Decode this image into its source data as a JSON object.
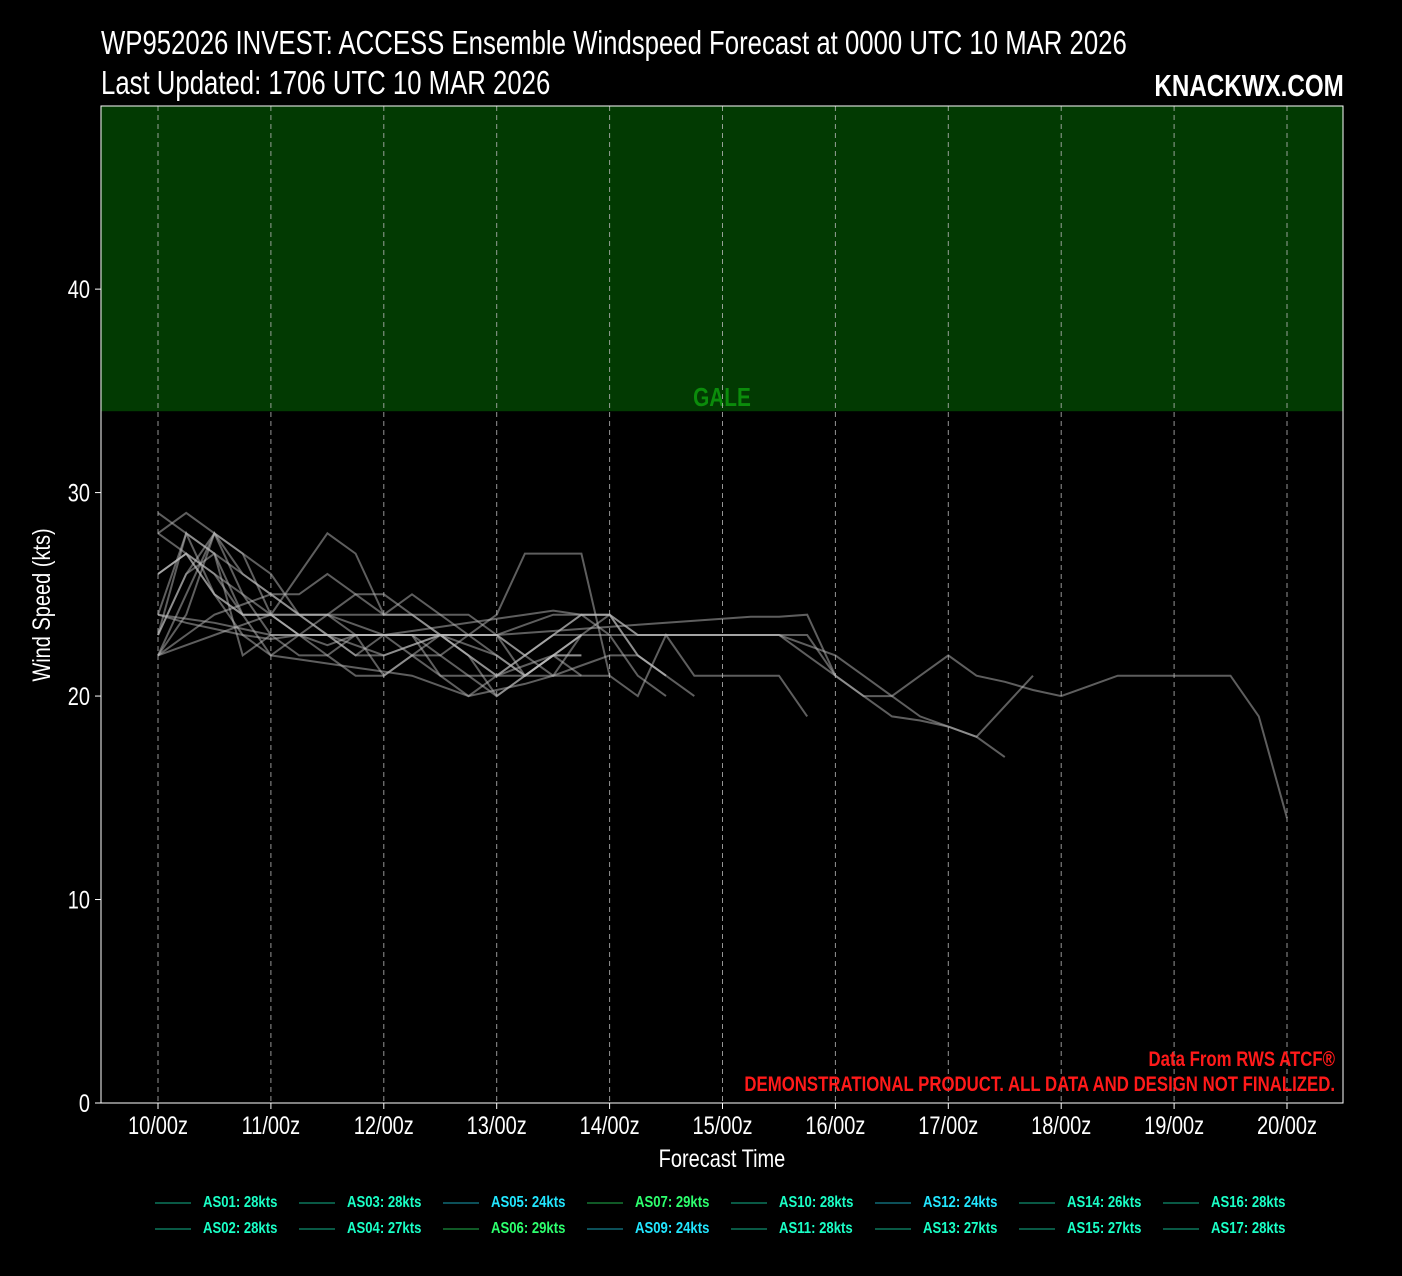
{
  "title": "WP952026 INVEST: ACCESS Ensemble Windspeed Forecast at 0000 UTC 10 MAR 2026",
  "subtitle": "Last Updated: 1706 UTC 10 MAR 2026",
  "brand": "KNACKWX.COM",
  "credit": "Data From RWS ATCF®",
  "disclaimer": "DEMONSTRATIONAL PRODUCT. ALL DATA AND DESIGN NOT FINALIZED.",
  "colors": {
    "background": "#000000",
    "gale_band": "#023a02",
    "gale_text": "#0b8c0b",
    "member_line": "#bbbbbb",
    "disclaimer": "#ff1a1a"
  },
  "chart_data": {
    "type": "line",
    "xlabel": "Forecast Time",
    "ylabel": "Wind Speed (kts)",
    "ylim": [
      0,
      49
    ],
    "yticks": [
      0,
      10,
      20,
      30,
      40
    ],
    "xticks": [
      "10/00z",
      "11/00z",
      "12/00z",
      "13/00z",
      "14/00z",
      "15/00z",
      "16/00z",
      "17/00z",
      "18/00z",
      "19/00z",
      "20/00z"
    ],
    "grid": "vertical dashed at day ticks",
    "legend_placement": "bottom",
    "threshold_bands": [
      {
        "label": "GALE",
        "from": 34,
        "to": 49
      }
    ],
    "times": [
      "10/00z",
      "10/06z",
      "10/12z",
      "10/18z",
      "11/00z",
      "11/06z",
      "11/12z",
      "11/18z",
      "12/00z",
      "12/06z",
      "12/12z",
      "12/18z",
      "13/00z",
      "13/06z",
      "13/12z",
      "13/18z",
      "14/00z",
      "14/06z",
      "14/12z",
      "14/18z",
      "15/00z",
      "15/06z",
      "15/12z",
      "15/18z",
      "16/00z",
      "16/06z",
      "16/12z",
      "16/18z",
      "17/00z",
      "17/06z",
      "17/12z",
      "17/18z",
      "18/00z",
      "18/06z",
      "18/12z",
      "18/18z",
      "19/00z",
      "19/06z",
      "19/12z",
      "19/18z",
      "20/00z"
    ],
    "series": [
      {
        "name": "AS01: 28kts",
        "color": "#1affc6",
        "values": [
          24,
          23.8,
          23.6,
          23.3,
          23,
          23,
          23,
          23,
          23,
          23,
          23,
          23,
          23,
          23.1,
          23.2,
          23.3,
          23.4,
          23.5,
          23.6,
          23.7,
          23.8,
          23.9,
          23.9,
          24,
          21,
          20,
          20,
          21,
          22,
          21,
          20.7,
          20.3,
          20,
          20.5,
          21,
          21,
          21,
          21,
          21,
          19,
          14
        ]
      },
      {
        "name": "AS02: 28kts",
        "color": "#1affc6",
        "values": [
          22,
          22.5,
          23,
          23.5,
          24,
          24,
          23,
          23,
          23,
          23.2,
          23.4,
          23.6,
          23.8,
          24,
          24.2,
          24,
          24,
          23,
          23,
          23,
          23,
          23,
          23,
          22.5,
          22,
          21,
          20,
          19,
          18.5,
          18,
          17
        ]
      },
      {
        "name": "AS03: 28kts",
        "color": "#1affc6",
        "values": [
          26,
          27,
          25,
          24,
          24,
          23,
          23,
          22.5,
          22,
          22.5,
          23,
          23,
          23,
          23.5,
          24,
          24,
          24,
          23,
          23,
          23,
          23,
          23,
          23,
          22,
          21,
          20,
          19,
          18.8,
          18.5,
          18,
          19.5,
          21
        ]
      },
      {
        "name": "AS04: 27kts",
        "color": "#1affc6",
        "values": [
          23,
          26,
          28,
          26,
          25,
          24,
          23,
          22,
          22,
          22.5,
          23,
          23,
          24,
          27,
          27,
          27,
          21,
          20,
          23,
          21,
          21,
          21,
          21,
          19
        ]
      },
      {
        "name": "AS05: 24kts",
        "color": "#22e6ff",
        "values": [
          29,
          28,
          27,
          26,
          25,
          24,
          24,
          23.5,
          23,
          23,
          22,
          21,
          20,
          21,
          22,
          23,
          23,
          23,
          23,
          23,
          23,
          23,
          23,
          23,
          21
        ]
      },
      {
        "name": "AS06: 29kts",
        "color": "#2dff6e",
        "values": [
          28,
          29,
          28,
          27,
          26,
          24,
          24,
          24,
          24,
          24,
          24,
          24,
          23,
          22,
          21,
          21,
          21
        ]
      },
      {
        "name": "AS07: 29kts",
        "color": "#2dff6e",
        "values": [
          22,
          24,
          28,
          27,
          24,
          26,
          28,
          27,
          24,
          25,
          24,
          23,
          22,
          21,
          22,
          23,
          24,
          22,
          21
        ]
      },
      {
        "name": "AS09: 24kts",
        "color": "#22e6ff",
        "values": [
          26,
          27,
          26,
          25,
          24,
          24,
          24,
          25,
          25,
          24,
          23,
          22,
          21,
          22,
          23,
          24,
          23,
          21,
          20
        ]
      },
      {
        "name": "AS10: 28kts",
        "color": "#1affc6",
        "values": [
          23,
          28,
          27,
          22,
          23,
          22,
          22,
          21,
          21,
          22,
          22,
          23,
          23,
          22,
          23,
          24,
          24,
          22,
          21,
          20
        ]
      },
      {
        "name": "AS11: 28kts",
        "color": "#1affc6",
        "values": [
          24,
          28,
          25,
          24,
          24,
          23,
          22,
          23,
          23,
          23,
          23,
          22,
          20,
          21,
          22,
          22
        ]
      },
      {
        "name": "AS12: 24kts",
        "color": "#22e6ff",
        "values": [
          22,
          25,
          28,
          25,
          23,
          23,
          22.5,
          23,
          23,
          23,
          23,
          23,
          23,
          21,
          21,
          23
        ]
      },
      {
        "name": "AS13: 27kts",
        "color": "#1affc6",
        "values": [
          28,
          27,
          26,
          24,
          24,
          23,
          23,
          23,
          23,
          23,
          21,
          20,
          21,
          22,
          23,
          23
        ]
      },
      {
        "name": "AS14: 26kts",
        "color": "#1affc6",
        "values": [
          23,
          26,
          27,
          24,
          22,
          21.8,
          21.6,
          21.4,
          21.2,
          21,
          20.5,
          20,
          20.3,
          20.6,
          21,
          21.5,
          22,
          22,
          21
        ]
      },
      {
        "name": "AS15: 27kts",
        "color": "#1affc6",
        "values": [
          26,
          27,
          25,
          23,
          22,
          23,
          24,
          23,
          21,
          22,
          23,
          22,
          21,
          21,
          22,
          23
        ]
      },
      {
        "name": "AS16: 28kts",
        "color": "#1affc6",
        "values": [
          22,
          23,
          24,
          24.5,
          25,
          25,
          26,
          25,
          24,
          24,
          23,
          22.5,
          22,
          21,
          22,
          21
        ]
      },
      {
        "name": "AS17: 28kts",
        "color": "#1affc6",
        "values": [
          24,
          23.6,
          23.3,
          23,
          22.8,
          23,
          23,
          22,
          23,
          22,
          21,
          21,
          21,
          21.5,
          22,
          22
        ]
      }
    ]
  }
}
